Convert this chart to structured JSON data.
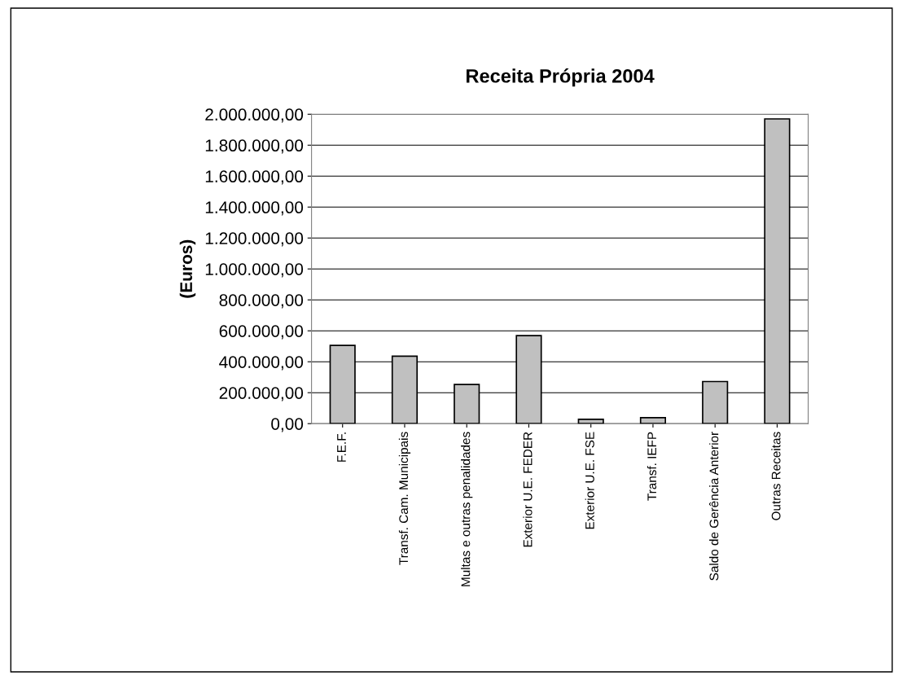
{
  "chart_data": {
    "type": "bar",
    "title": "Receita Própria 2004",
    "ylabel": "(Euros)",
    "categories": [
      "F.E.F.",
      "Transf. Cam. Municipais",
      "Multas e outras penalidades",
      "Exterior U.E. FEDER",
      "Exterior U.E. FSE",
      "Transf. IEFP",
      "Saldo de Gerência Anterior",
      "Outras Receitas"
    ],
    "values": [
      506000,
      436000,
      253000,
      569000,
      28000,
      39000,
      272000,
      1970000
    ],
    "color": "#c0c0c0",
    "ylim": [
      0,
      2000000
    ],
    "yticks": [
      {
        "value": 0,
        "label": "0,00"
      },
      {
        "value": 200000,
        "label": "200.000,00"
      },
      {
        "value": 400000,
        "label": "400.000,00"
      },
      {
        "value": 600000,
        "label": "600.000,00"
      },
      {
        "value": 800000,
        "label": "800.000,00"
      },
      {
        "value": 1000000,
        "label": "1.000.000,00"
      },
      {
        "value": 1200000,
        "label": "1.200.000,00"
      },
      {
        "value": 1400000,
        "label": "1.400.000,00"
      },
      {
        "value": 1600000,
        "label": "1.600.000,00"
      },
      {
        "value": 1800000,
        "label": "1.800.000,00"
      },
      {
        "value": 2000000,
        "label": "2.000.000,00"
      }
    ],
    "grid": "y"
  }
}
